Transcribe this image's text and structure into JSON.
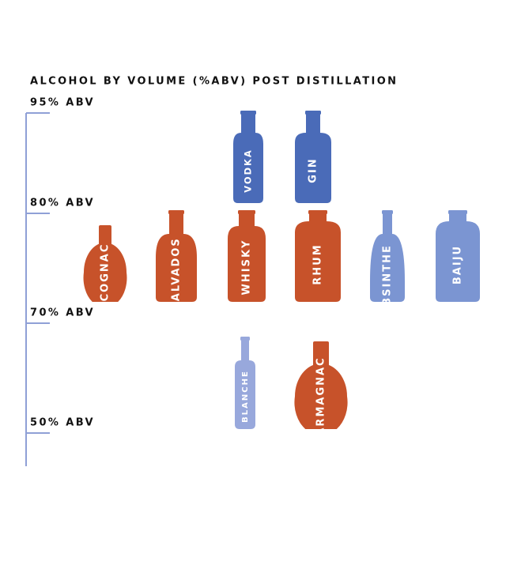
{
  "title": "ALCOHOL BY VOLUME (%ABV) POST DISTILLATION",
  "tiers": [
    {
      "label": "95% ABV",
      "bottles": [
        {
          "name": "VODKA",
          "color": "#4a6bb8"
        },
        {
          "name": "GIN",
          "color": "#4a6bb8"
        }
      ]
    },
    {
      "label": "80% ABV",
      "bottles": [
        {
          "name": "COGNAC",
          "color": "#c7522a"
        },
        {
          "name": "CALVADOS",
          "color": "#c7522a"
        },
        {
          "name": "WHISKY",
          "color": "#c7522a"
        },
        {
          "name": "RHUM",
          "color": "#c7522a"
        },
        {
          "name": "ABSINTHE",
          "color": "#7b95d2"
        },
        {
          "name": "BAIJU",
          "color": "#7b95d2"
        }
      ]
    },
    {
      "label": "70% ABV",
      "bottles": [
        {
          "name": "BLANCHE",
          "color": "#98a8dc"
        },
        {
          "name": "ARMAGNAC",
          "color": "#c7522a"
        }
      ]
    },
    {
      "label": "50% ABV",
      "bottles": []
    }
  ]
}
